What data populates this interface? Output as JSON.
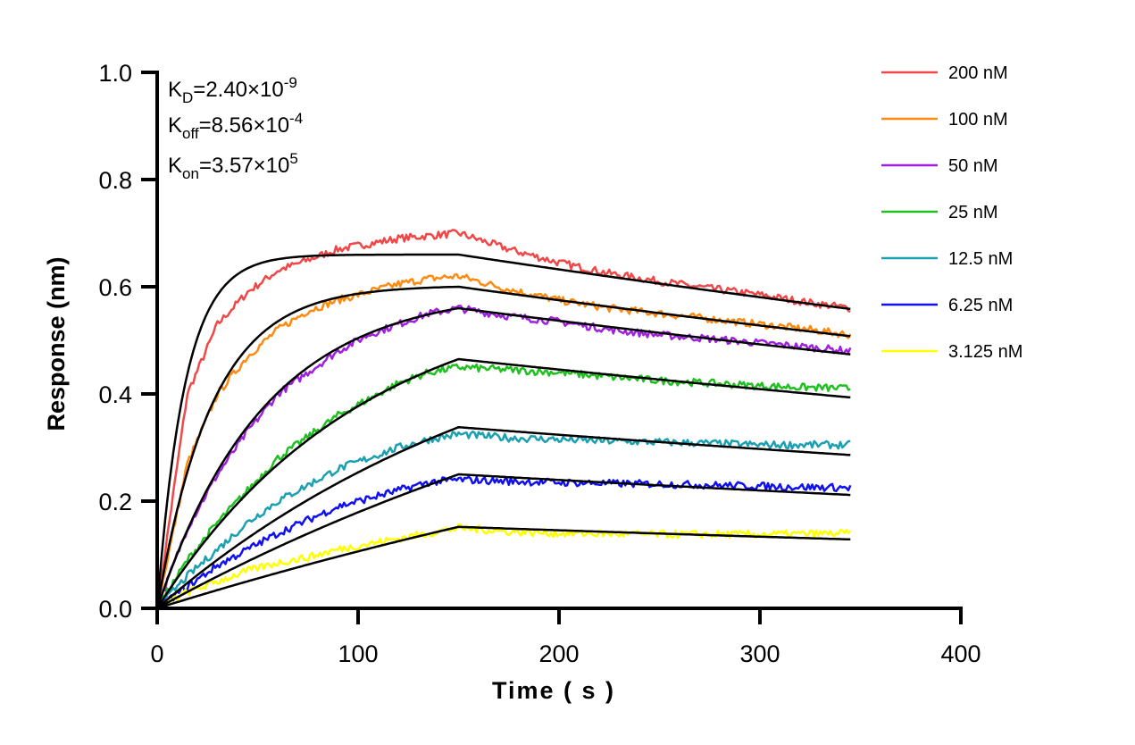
{
  "chart_data": {
    "type": "line",
    "title": "",
    "xlabel": "Time ( s )",
    "ylabel": "Response (nm)",
    "xlim": [
      0,
      400
    ],
    "ylim": [
      0,
      1.0
    ],
    "xticks": [
      0,
      100,
      200,
      300,
      400
    ],
    "yticks": [
      0.0,
      0.2,
      0.4,
      0.6,
      0.8,
      1.0
    ],
    "xtick_labels": [
      "0",
      "100",
      "200",
      "300",
      "400"
    ],
    "ytick_labels": [
      "0.0",
      "0.2",
      "0.4",
      "0.6",
      "0.8",
      "1.0"
    ],
    "grid": false,
    "legend_position": "top-right",
    "annotations": [
      {
        "name": "K",
        "sub": "D",
        "value": "=2.40×10",
        "exp": "-9"
      },
      {
        "name": "K",
        "sub": "off",
        "value": "=8.56×10",
        "exp": "-4"
      },
      {
        "name": "K",
        "sub": "on",
        "value": "=3.57×10",
        "exp": "5"
      }
    ],
    "kinetics": {
      "KD": 2.4e-09,
      "koff": 0.000856,
      "kon": 357000.0
    },
    "association_end": 150,
    "dissociation_end": 345,
    "fit_color": "#000000",
    "x": [
      0,
      15,
      30,
      45,
      60,
      75,
      90,
      105,
      120,
      135,
      150,
      175,
      200,
      225,
      250,
      275,
      300,
      325,
      345
    ],
    "series": [
      {
        "name": "200 nM",
        "conc_nM": 200,
        "color": "#f04848",
        "fit_r150": 0.66,
        "values": [
          0,
          0.4,
          0.53,
          0.59,
          0.63,
          0.65,
          0.67,
          0.68,
          0.69,
          0.695,
          0.7,
          0.67,
          0.645,
          0.625,
          0.61,
          0.597,
          0.585,
          0.57,
          0.56
        ]
      },
      {
        "name": "100 nM",
        "conc_nM": 100,
        "color": "#ff8a10",
        "fit_r150": 0.6,
        "values": [
          0,
          0.27,
          0.4,
          0.47,
          0.52,
          0.555,
          0.575,
          0.59,
          0.605,
          0.615,
          0.62,
          0.595,
          0.575,
          0.56,
          0.55,
          0.54,
          0.53,
          0.52,
          0.51
        ]
      },
      {
        "name": "50 nM",
        "conc_nM": 50,
        "color": "#a020e0",
        "fit_r150": 0.56,
        "values": [
          0,
          0.15,
          0.25,
          0.33,
          0.4,
          0.44,
          0.48,
          0.51,
          0.53,
          0.55,
          0.56,
          0.545,
          0.535,
          0.52,
          0.51,
          0.503,
          0.495,
          0.487,
          0.48
        ]
      },
      {
        "name": "25 nM",
        "conc_nM": 25,
        "color": "#20c020",
        "fit_r150": 0.465,
        "values": [
          0,
          0.09,
          0.16,
          0.22,
          0.28,
          0.32,
          0.36,
          0.39,
          0.42,
          0.44,
          0.45,
          0.445,
          0.44,
          0.432,
          0.425,
          0.42,
          0.415,
          0.412,
          0.41
        ]
      },
      {
        "name": "12.5 nM",
        "conc_nM": 12.5,
        "color": "#1aa0b0",
        "fit_r150": 0.338,
        "values": [
          0,
          0.06,
          0.11,
          0.16,
          0.2,
          0.23,
          0.26,
          0.28,
          0.3,
          0.315,
          0.325,
          0.318,
          0.315,
          0.312,
          0.31,
          0.308,
          0.305,
          0.305,
          0.305
        ]
      },
      {
        "name": "6.25 nM",
        "conc_nM": 6.25,
        "color": "#1010f0",
        "fit_r150": 0.25,
        "values": [
          0,
          0.04,
          0.08,
          0.11,
          0.14,
          0.165,
          0.19,
          0.205,
          0.22,
          0.235,
          0.24,
          0.237,
          0.235,
          0.233,
          0.232,
          0.23,
          0.228,
          0.226,
          0.225
        ]
      },
      {
        "name": "3.125 nM",
        "conc_nM": 3.125,
        "color": "#ffff00",
        "fit_r150": 0.152,
        "values": [
          0,
          0.03,
          0.05,
          0.07,
          0.085,
          0.095,
          0.11,
          0.12,
          0.13,
          0.14,
          0.15,
          0.143,
          0.14,
          0.139,
          0.138,
          0.138,
          0.138,
          0.139,
          0.14
        ]
      }
    ]
  }
}
